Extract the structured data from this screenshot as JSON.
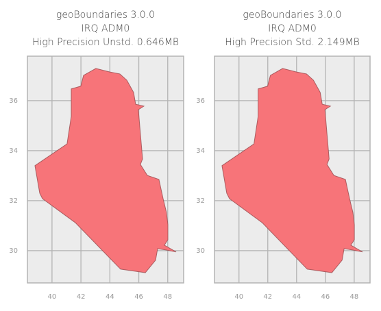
{
  "chart_data": [
    {
      "type": "map",
      "title": [
        "geoBoundaries 3.0.0",
        "IRQ ADM0",
        "High Precision Unstd. 0.646MB"
      ],
      "x": [
        38.82,
        41.04,
        41.33,
        41.33,
        41.99,
        42.18,
        43.03,
        43.98,
        44.69,
        45.17,
        45.64,
        45.78,
        46.35,
        45.97,
        46.11,
        46.26,
        46.11,
        46.59,
        47.39,
        47.68,
        47.91,
        48.01,
        48.01,
        47.77,
        48.58,
        47.87,
        47.3,
        47.16,
        46.45,
        44.74,
        41.61,
        39.34,
        39.15
      ],
      "y": [
        33.4,
        34.27,
        35.37,
        36.47,
        36.58,
        37.01,
        37.29,
        37.15,
        37.07,
        36.82,
        36.33,
        35.86,
        35.78,
        35.64,
        34.68,
        33.67,
        33.45,
        33.01,
        32.85,
        32.08,
        31.53,
        31.04,
        30.44,
        30.22,
        29.95,
        30.03,
        30.08,
        29.62,
        29.12,
        29.26,
        31.12,
        32.08,
        32.3
      ],
      "color": "#f77479",
      "xlim": [
        38.3,
        49.1
      ],
      "ylim": [
        28.71,
        37.78
      ],
      "xticks": [
        40,
        42,
        44,
        46,
        48
      ],
      "yticks": [
        30,
        32,
        34,
        36
      ],
      "grid": true
    },
    {
      "type": "map",
      "title": [
        "geoBoundaries 3.0.0",
        "IRQ ADM0",
        "High Precision Std. 2.149MB"
      ],
      "x": [
        38.82,
        41.04,
        41.33,
        41.33,
        41.99,
        42.18,
        43.03,
        43.98,
        44.69,
        45.17,
        45.64,
        45.78,
        46.35,
        45.97,
        46.11,
        46.26,
        46.11,
        46.59,
        47.39,
        47.68,
        47.91,
        48.01,
        48.01,
        47.77,
        48.58,
        47.87,
        47.3,
        47.16,
        46.45,
        44.74,
        41.61,
        39.34,
        39.15
      ],
      "y": [
        33.4,
        34.27,
        35.37,
        36.47,
        36.58,
        37.01,
        37.29,
        37.15,
        37.07,
        36.82,
        36.33,
        35.86,
        35.78,
        35.64,
        34.68,
        33.67,
        33.45,
        33.01,
        32.85,
        32.08,
        31.53,
        31.04,
        30.44,
        30.22,
        29.95,
        30.03,
        30.08,
        29.62,
        29.12,
        29.26,
        31.12,
        32.08,
        32.3
      ],
      "color": "#f77479",
      "xlim": [
        38.3,
        49.1
      ],
      "ylim": [
        28.71,
        37.78
      ],
      "xticks": [
        40,
        42,
        44,
        46,
        48
      ],
      "yticks": [
        30,
        32,
        34,
        36
      ],
      "grid": true
    }
  ]
}
